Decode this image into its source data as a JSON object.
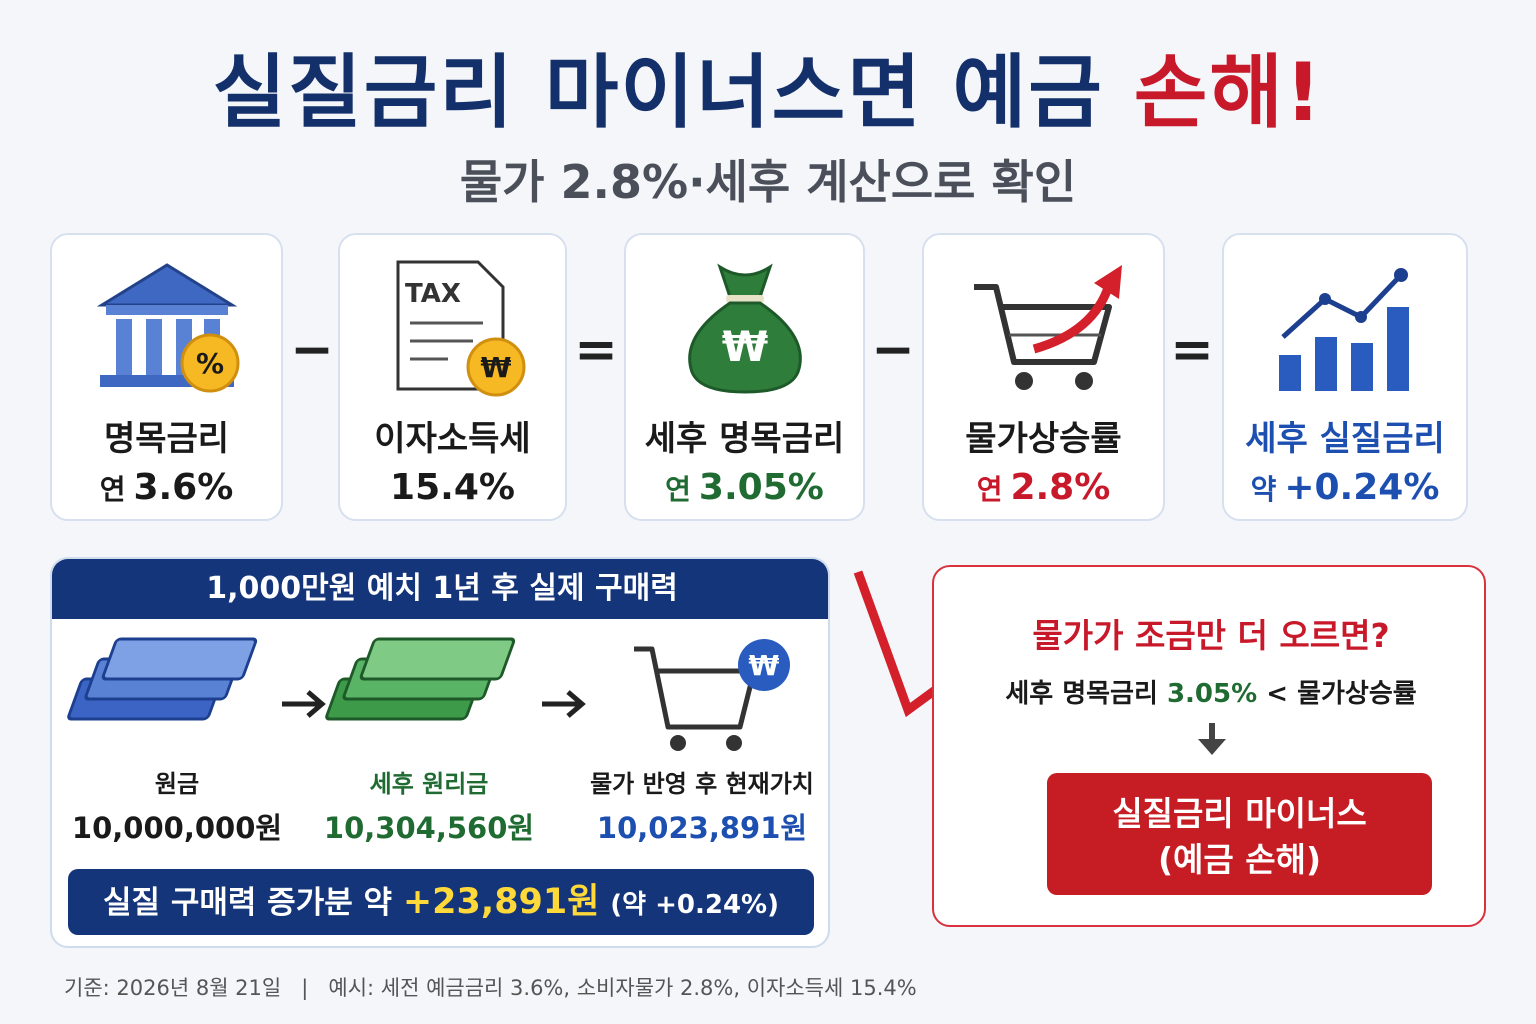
{
  "header": {
    "title_main": "실질금리 마이너스면 예금",
    "title_accent": "손해!",
    "subtitle": "물가 2.8%·세후 계산으로 확인"
  },
  "cards": [
    {
      "icon_text": "%",
      "label": "명목금리",
      "prefix": "연",
      "value": "3.6%"
    },
    {
      "icon_text": "TAX",
      "icon_badge": "₩",
      "label": "이자소득세",
      "value": "15.4%"
    },
    {
      "icon_text": "₩",
      "label": "세후 명목금리",
      "prefix": "연",
      "value": "3.05%"
    },
    {
      "label": "물가상승률",
      "prefix": "연",
      "value": "2.8%"
    },
    {
      "label": "세후 실질금리",
      "prefix": "약",
      "value": "+0.24%"
    }
  ],
  "operators": [
    "−",
    "=",
    "−",
    "="
  ],
  "purchase": {
    "title": "1,000만원 예치 1년 후 실제 구매력",
    "badge": "₩",
    "items": [
      {
        "label": "원금",
        "amount": "10,000,000원"
      },
      {
        "label": "세후 원리금",
        "amount": "10,304,560원"
      },
      {
        "label": "물가 반영 후 현재가치",
        "amount": "10,023,891원"
      }
    ],
    "summary": "실질 구매력 증가분 약",
    "summary_amount": "+23,891원",
    "summary_note": "(약 +0.24%)"
  },
  "warning": {
    "title": "물가가 조금만 더 오르면?",
    "left": "세후 명목금리",
    "left_value": "3.05%",
    "symbol": "<",
    "right": "물가상승률",
    "result_line1": "실질금리 마이너스",
    "result_line2": "(예금 손해)"
  },
  "footer": {
    "basis": "기준: 2026년 8월 21일",
    "separator": "|",
    "example": "예시: 세전 예금금리 3.6%, 소비자물가 2.8%, 이자소득세 15.4%"
  }
}
